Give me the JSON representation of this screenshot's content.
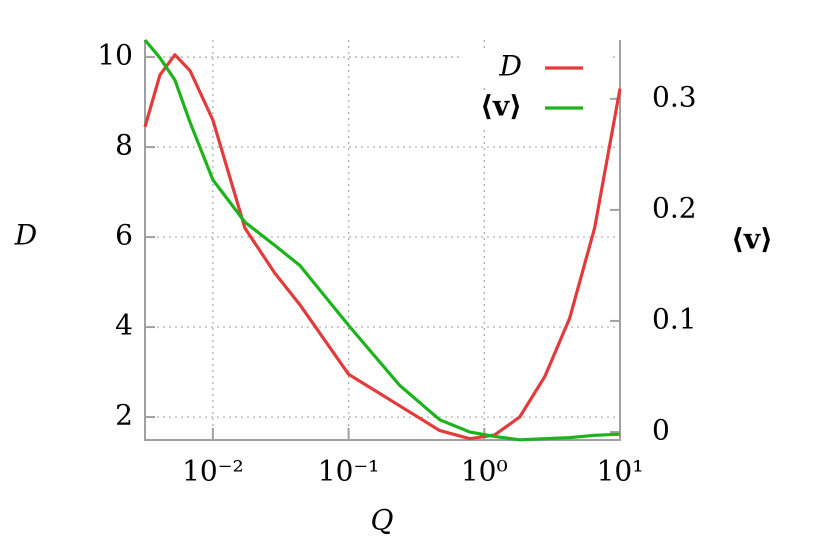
{
  "chart_data": {
    "type": "line",
    "x_label": "Q",
    "y_label": "D",
    "y2_label": "⟨v⟩",
    "x": [
      0.00316,
      0.00407,
      0.00525,
      0.00678,
      0.01,
      0.0172,
      0.0286,
      0.0437,
      0.1,
      0.238,
      0.47,
      0.782,
      1.19,
      1.82,
      2.79,
      4.26,
      6.5,
      10
    ],
    "series": [
      {
        "name": "D",
        "color": "#e23b3b",
        "values": [
          8.45,
          9.6,
          10.05,
          9.7,
          8.6,
          6.2,
          5.2,
          4.5,
          2.95,
          2.25,
          1.7,
          1.52,
          1.6,
          2.0,
          2.9,
          4.2,
          6.2,
          9.3
        ]
      },
      {
        "name": "⟨v⟩",
        "color": "#1db31d",
        "axis": "y2",
        "values": [
          0.353,
          0.337,
          0.317,
          0.279,
          0.227,
          0.189,
          0.168,
          0.15,
          0.096,
          0.042,
          0.011,
          0,
          -0.004,
          -0.007,
          -0.006,
          -0.005,
          -0.003,
          -0.002
        ]
      }
    ],
    "xscale": "log",
    "xlim": [
      0.00316,
      10
    ],
    "xticks": [
      {
        "value": 0.01,
        "label": "10⁻²"
      },
      {
        "value": 0.1,
        "label": "10⁻¹"
      },
      {
        "value": 1,
        "label": "10⁰"
      },
      {
        "value": 10,
        "label": "10¹"
      }
    ],
    "ylim": [
      1.49,
      10.38
    ],
    "yticks": [
      2,
      4,
      6,
      8,
      10
    ],
    "y2lim": [
      -0.0072,
      0.353
    ],
    "y2ticks": [
      0,
      0.1,
      0.2,
      0.3
    ],
    "grid": true,
    "legend": "upper right"
  }
}
